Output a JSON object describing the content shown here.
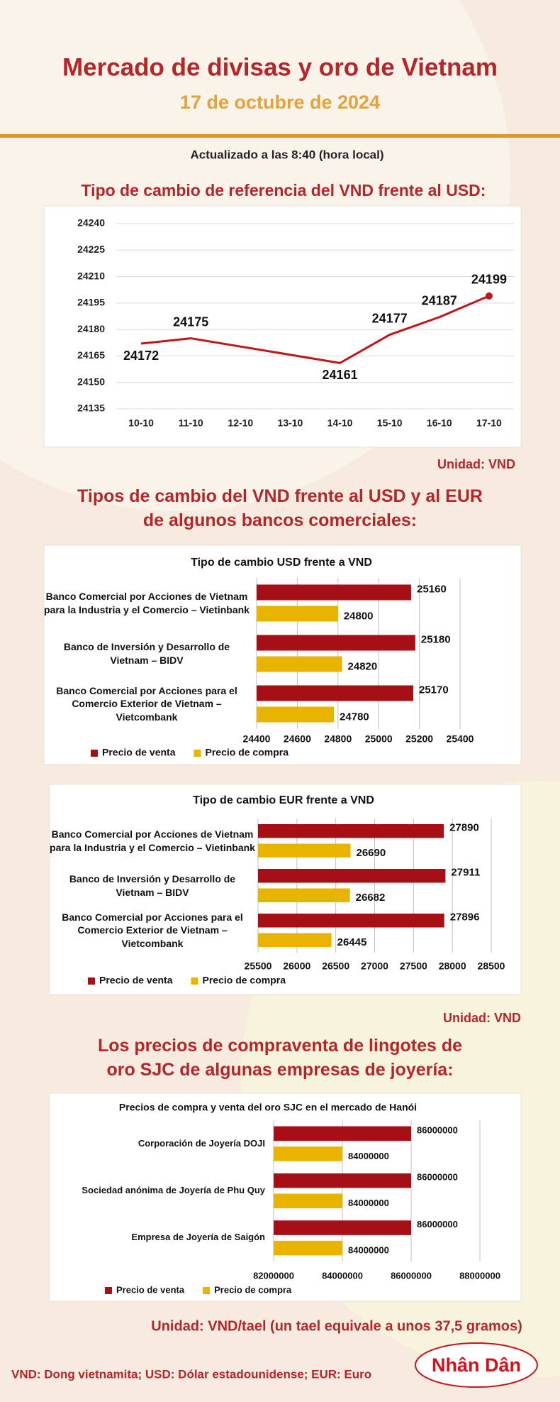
{
  "header": {
    "title": "Mercado de divisas y oro de Vietnam",
    "date": "17 de octubre de 2024",
    "updated": "Actualizado a las 8:40 (hora local)"
  },
  "sections": [
    {
      "heading": "Tipo de cambio de referencia del VND frente al USD:",
      "unit": "Unidad: VND"
    },
    {
      "heading": "Tipos de cambio del VND frente al USD y al EUR de algunos bancos comerciales:",
      "unit": "Unidad: VND"
    },
    {
      "heading": "Los precios de compraventa de lingotes de oro SJC de algunas empresas de joyería:",
      "unit": "Unidad: VND/tael (un tael equivale a unos 37,5 gramos)"
    }
  ],
  "footer": "VND: Dong vietnamita; USD: Dólar estadounidense; EUR: Euro",
  "logo": "Nhân Dân",
  "chart_data": [
    {
      "type": "line",
      "categories": [
        "10-10",
        "11-10",
        "12-10",
        "13-10",
        "14-10",
        "15-10",
        "16-10",
        "17-10"
      ],
      "values": [
        24172,
        24175,
        null,
        null,
        24161,
        24177,
        24187,
        24199
      ],
      "color": "#c0161b",
      "ylim": [
        24135,
        24240
      ],
      "yticks": [
        24135,
        24150,
        24165,
        24180,
        24195,
        24210,
        24225,
        24240
      ],
      "grid": true
    },
    {
      "type": "hbar",
      "title": "Tipo de cambio USD frente a VND",
      "categories": [
        "Banco Comercial por Acciones de Vietnam para la Industria y el Comercio – Vietinbank",
        "Banco de Inversión y Desarrollo de Vietnam – BIDV",
        "Banco Comercial por Acciones para el Comercio Exterior de Vietnam – Vietcombank"
      ],
      "series": [
        {
          "name": "Precio de venta",
          "color": "#a50f15",
          "values": [
            25160,
            25180,
            25170
          ]
        },
        {
          "name": "Precio de compra",
          "color": "#e8b400",
          "values": [
            24800,
            24820,
            24780
          ]
        }
      ],
      "xlim": [
        24400,
        25400
      ],
      "xticks": [
        24400,
        24600,
        24800,
        25000,
        25200,
        25400
      ],
      "grid": true,
      "legend": "bottom-left"
    },
    {
      "type": "hbar",
      "title": "Tipo de cambio EUR frente a VND",
      "categories": [
        "Banco Comercial por Acciones de Vietnam para la Industria y el Comercio – Vietinbank",
        "Banco de Inversión y Desarrollo de Vietnam – BIDV",
        "Banco Comercial por Acciones para el Comercio Exterior de Vietnam – Vietcombank"
      ],
      "series": [
        {
          "name": "Precio de venta",
          "color": "#a50f15",
          "values": [
            27890,
            27911,
            27896
          ]
        },
        {
          "name": "Precio de compra",
          "color": "#e8b400",
          "values": [
            26690,
            26682,
            26445
          ]
        }
      ],
      "xlim": [
        25500,
        28500
      ],
      "xticks": [
        25500,
        26000,
        26500,
        27000,
        27500,
        28000,
        28500
      ],
      "grid": true,
      "legend": "bottom-left"
    },
    {
      "type": "hbar",
      "title": "Precios de compra y venta del oro SJC en el mercado de Hanói",
      "categories": [
        "Corporación de Joyería DOJI",
        "Sociedad anónima de Joyería de Phu Quy",
        "Empresa de Joyería de Saigón"
      ],
      "series": [
        {
          "name": "Precio de venta",
          "color": "#a50f15",
          "values": [
            86000000,
            86000000,
            86000000
          ]
        },
        {
          "name": "Precio de compra",
          "color": "#e8b400",
          "values": [
            84000000,
            84000000,
            84000000
          ]
        }
      ],
      "xlim": [
        82000000,
        88000000
      ],
      "xticks": [
        82000000,
        84000000,
        86000000,
        88000000
      ],
      "grid": true,
      "legend": "bottom-left"
    }
  ]
}
